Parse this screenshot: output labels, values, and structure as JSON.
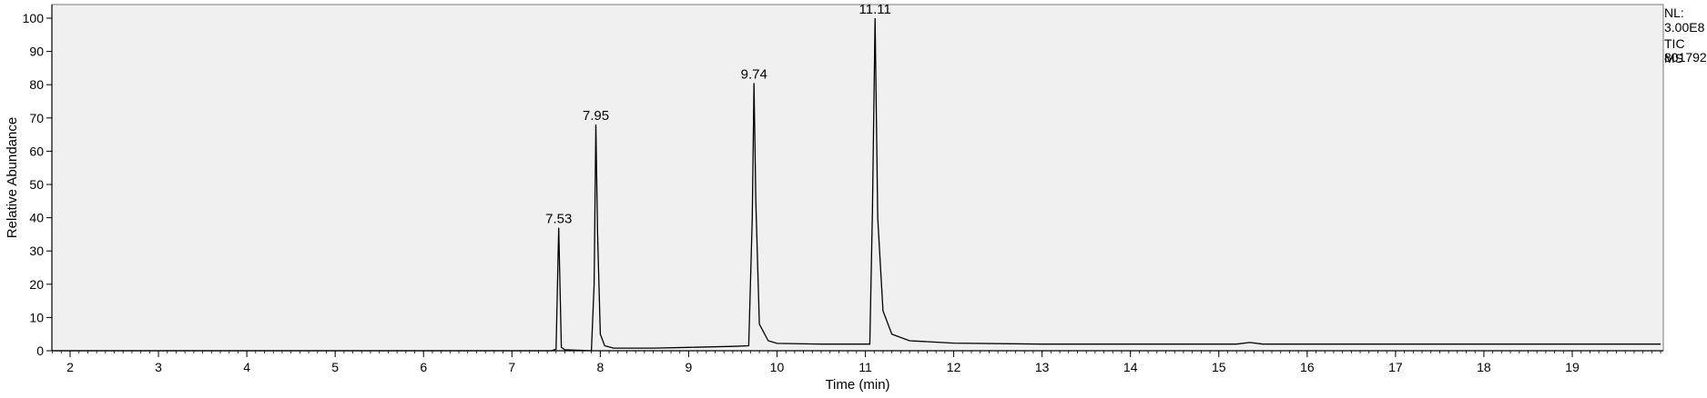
{
  "chart_data": {
    "type": "line",
    "title": "",
    "xlabel": "Time (min)",
    "ylabel": "Relative Abundance",
    "xlim": [
      1.8,
      20.0
    ],
    "ylim": [
      0,
      100
    ],
    "xticks": [
      2,
      3,
      4,
      5,
      6,
      7,
      8,
      9,
      10,
      11,
      12,
      13,
      14,
      15,
      16,
      17,
      18,
      19
    ],
    "yticks": [
      0,
      10,
      20,
      30,
      40,
      50,
      60,
      70,
      80,
      90,
      100
    ],
    "grid": false,
    "colors": {
      "line": "#000000",
      "plot_background": "#f0f0f0"
    },
    "peaks": [
      {
        "x": 7.53,
        "y": 37,
        "label": "7.53"
      },
      {
        "x": 7.95,
        "y": 68,
        "label": "7.95"
      },
      {
        "x": 9.74,
        "y": 80.5,
        "label": "9.74"
      },
      {
        "x": 11.11,
        "y": 100,
        "label": "11.11"
      }
    ],
    "series": [
      {
        "values": [
          [
            1.8,
            0
          ],
          [
            7.45,
            0
          ],
          [
            7.5,
            0.5
          ],
          [
            7.53,
            37
          ],
          [
            7.56,
            1
          ],
          [
            7.6,
            0.3
          ],
          [
            7.9,
            0
          ],
          [
            7.93,
            20
          ],
          [
            7.95,
            68
          ],
          [
            7.97,
            35
          ],
          [
            8.0,
            5
          ],
          [
            8.05,
            1.5
          ],
          [
            8.15,
            0.8
          ],
          [
            8.6,
            0.8
          ],
          [
            9.0,
            1.0
          ],
          [
            9.5,
            1.3
          ],
          [
            9.68,
            1.5
          ],
          [
            9.72,
            40
          ],
          [
            9.74,
            80.5
          ],
          [
            9.76,
            45
          ],
          [
            9.8,
            8
          ],
          [
            9.9,
            3
          ],
          [
            10.0,
            2.2
          ],
          [
            10.5,
            2.0
          ],
          [
            11.05,
            2.0
          ],
          [
            11.08,
            42
          ],
          [
            11.11,
            100
          ],
          [
            11.14,
            40
          ],
          [
            11.2,
            12
          ],
          [
            11.3,
            5
          ],
          [
            11.5,
            3
          ],
          [
            12.0,
            2.3
          ],
          [
            13.0,
            2.0
          ],
          [
            15.2,
            2.0
          ],
          [
            15.35,
            2.5
          ],
          [
            15.5,
            2.0
          ],
          [
            20.0,
            2.0
          ]
        ]
      }
    ],
    "side_text": [
      "NL:",
      "3.00E8",
      "TIC  MS",
      "801792"
    ]
  }
}
